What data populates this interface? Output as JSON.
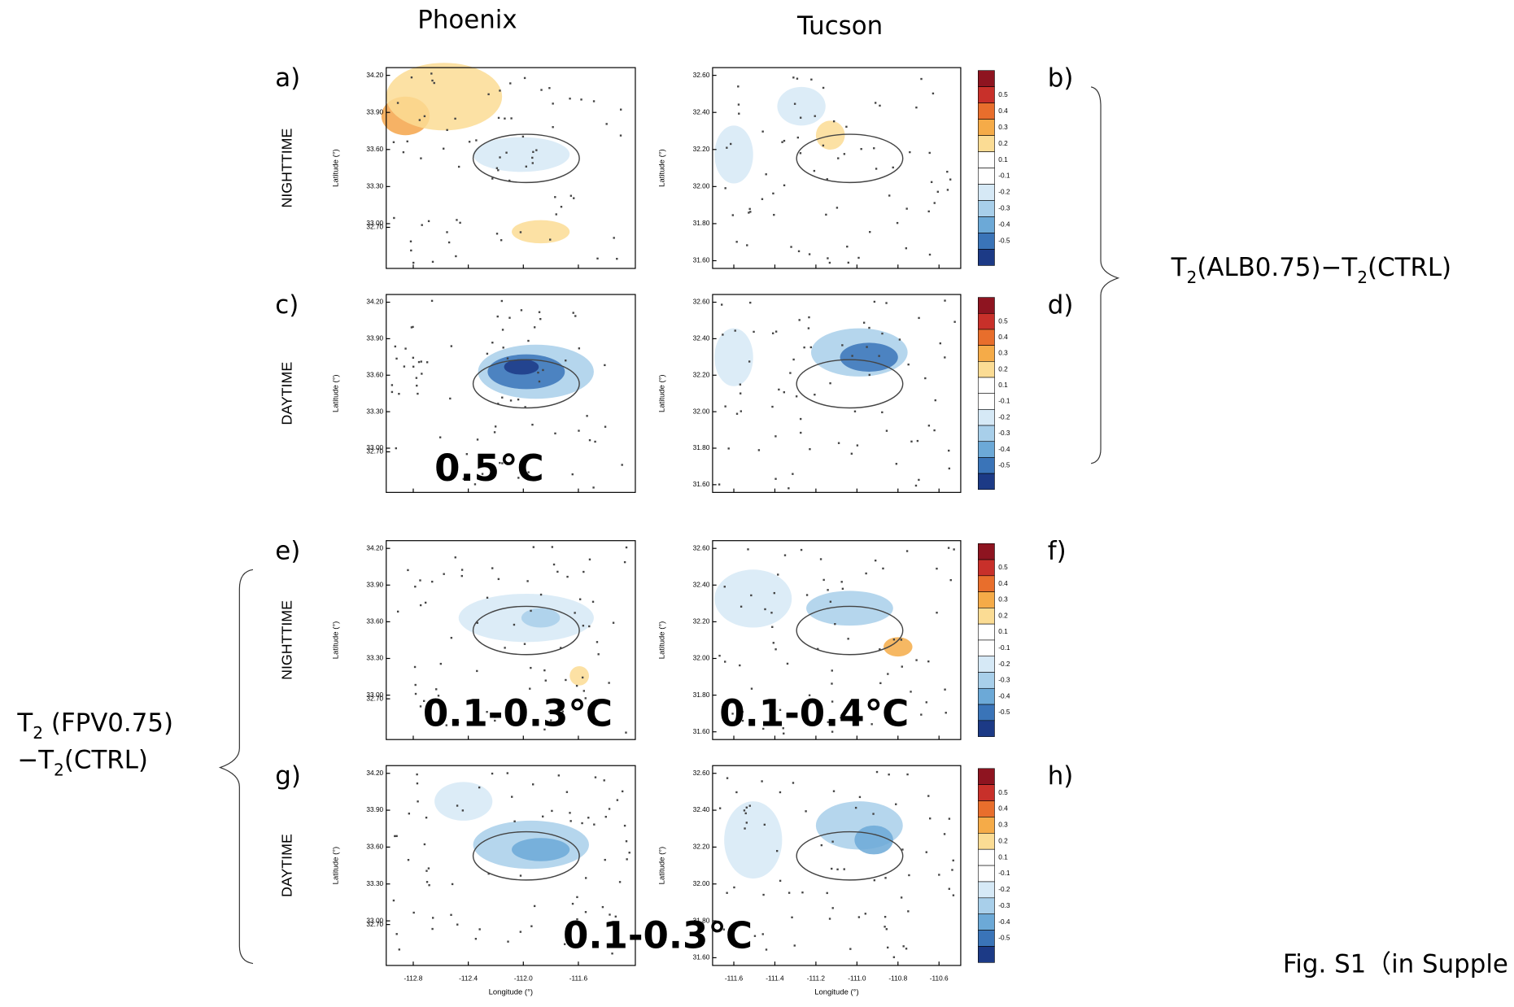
{
  "columns": [
    "Phoenix",
    "Tucson"
  ],
  "panels": [
    {
      "label": "a)",
      "row_label": "NIGHTTIME"
    },
    {
      "label": "b)"
    },
    {
      "label": "c)",
      "row_label": "DAYTIME"
    },
    {
      "label": "d)"
    },
    {
      "label": "e)",
      "row_label": "NIGHTTIME"
    },
    {
      "label": "f)"
    },
    {
      "label": "g)",
      "row_label": "DAYTIME"
    },
    {
      "label": "h)"
    }
  ],
  "y_axis_label": "Latitude (°)",
  "x_axis_label": "Longitude (°)",
  "phoenix_yticks": [
    "34.20",
    "33.90",
    "33.60",
    "33.30",
    "33.00",
    "32.70"
  ],
  "tucson_yticks": [
    "32.60",
    "32.40",
    "32.20",
    "32.00",
    "31.80",
    "31.60"
  ],
  "phoenix_xticks": [
    "-112.8",
    "-112.4",
    "-112.0",
    "-111.6"
  ],
  "tucson_xticks": [
    "-111.6",
    "-111.4",
    "-111.2",
    "-111.0",
    "-110.8",
    "-110.6"
  ],
  "colorbar": {
    "labels": [
      "0.5",
      "0.4",
      "0.3",
      "0.2",
      "0.1",
      "-0.1",
      "-0.2",
      "-0.3",
      "-0.4",
      "-0.5"
    ],
    "colors": [
      "#8e1420",
      "#c8302a",
      "#e86e2c",
      "#f5ab48",
      "#fbdc94",
      "#ffffff",
      "#ffffff",
      "#d6e9f6",
      "#a8cfea",
      "#6ca9d7",
      "#3a74b8",
      "#1c3a86"
    ]
  },
  "bracket_top": [
    "T",
    "2",
    "(ALB0.75)−T",
    "2",
    "(CTRL)"
  ],
  "bracket_left": [
    [
      "T",
      "2",
      " (FPV0.75)"
    ],
    [
      "−T",
      "2",
      "(CTRL)"
    ]
  ],
  "annotations": [
    {
      "text": "0.5℃",
      "color": "#ff0000"
    },
    {
      "text": "0.1-0.3℃",
      "color": "#1aa34a"
    },
    {
      "text": "0.1-0.4℃",
      "color": "#1aa34a"
    },
    {
      "text": "0.1-0.3℃",
      "color": "#ff0000"
    }
  ],
  "caption": "Fig. S1（in Supple"
}
